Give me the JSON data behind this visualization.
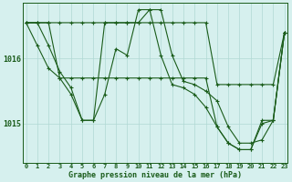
{
  "title": "Graphe pression niveau de la mer (hPa)",
  "bg_color": "#d6f0ee",
  "grid_color": "#b0d8d4",
  "line_color": "#1a5c1a",
  "x_labels": [
    "0",
    "1",
    "2",
    "3",
    "4",
    "5",
    "6",
    "7",
    "8",
    "9",
    "10",
    "11",
    "12",
    "13",
    "14",
    "15",
    "16",
    "17",
    "18",
    "19",
    "20",
    "21",
    "22",
    "23"
  ],
  "yticks": [
    1015,
    1016
  ],
  "ylim": [
    1014.4,
    1016.85
  ],
  "xlim": [
    -0.3,
    23.3
  ],
  "series": [
    [
      1016.55,
      1016.55,
      1016.2,
      1015.8,
      1015.55,
      1015.05,
      1015.05,
      1016.55,
      1016.55,
      1016.55,
      1016.55,
      1016.75,
      1016.75,
      1016.05,
      1015.65,
      1015.6,
      1015.5,
      1015.35,
      1014.95,
      1014.7,
      1014.7,
      1014.75,
      1015.05,
      1016.4
    ],
    [
      1016.55,
      1016.55,
      1016.55,
      1016.55,
      1016.55,
      1016.55,
      1016.55,
      1016.55,
      1016.55,
      1016.55,
      1016.55,
      1016.55,
      1016.55,
      1016.55,
      1016.55,
      1016.55,
      1016.55,
      1015.6,
      1015.6,
      1015.6,
      1015.6,
      1015.6,
      1015.6,
      1016.4
    ],
    [
      1016.55,
      1016.55,
      1016.55,
      1015.7,
      1015.7,
      1015.7,
      1015.7,
      1015.7,
      1015.7,
      1015.7,
      1015.7,
      1015.7,
      1015.7,
      1015.7,
      1015.7,
      1015.7,
      1015.7,
      1014.95,
      1014.7,
      1014.6,
      1014.6,
      1015.05,
      1015.05,
      1016.4
    ],
    [
      1016.55,
      1016.2,
      1015.85,
      1015.7,
      1015.45,
      1015.05,
      1015.05,
      1015.45,
      1016.15,
      1016.05,
      1016.75,
      1016.75,
      1016.05,
      1015.6,
      1015.55,
      1015.45,
      1015.25,
      1014.95,
      1014.7,
      1014.6,
      1014.6,
      1015.0,
      1015.05,
      1016.4
    ]
  ]
}
